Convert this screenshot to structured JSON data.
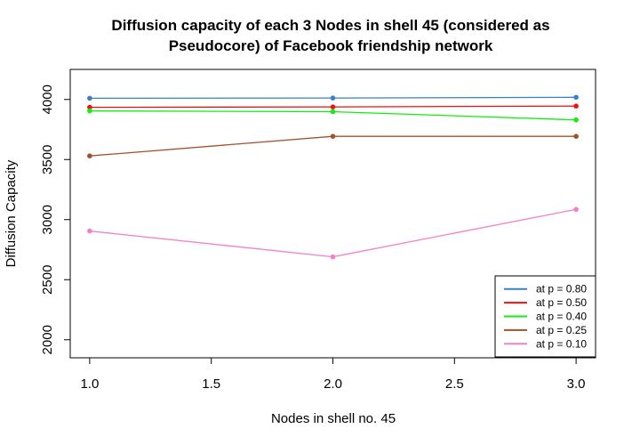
{
  "chart_data": {
    "type": "line",
    "title_lines": [
      "Diffusion capacity of each 3 Nodes in shell 45 (considered as",
      "Pseudocore) of Facebook friendship network"
    ],
    "xlabel": "Nodes in shell no. 45",
    "ylabel": "Diffusion Capacity",
    "x": [
      1,
      2,
      3
    ],
    "xlim": [
      0.92,
      3.08
    ],
    "ylim": [
      1850,
      4250
    ],
    "xticks": [
      {
        "value": 1.0,
        "label": "1.0"
      },
      {
        "value": 1.5,
        "label": "1.5"
      },
      {
        "value": 2.0,
        "label": "2.0"
      },
      {
        "value": 2.5,
        "label": "2.5"
      },
      {
        "value": 3.0,
        "label": "3.0"
      }
    ],
    "yticks": [
      {
        "value": 2000,
        "label": "2000"
      },
      {
        "value": 2500,
        "label": "2500"
      },
      {
        "value": 3000,
        "label": "3000"
      },
      {
        "value": 3500,
        "label": "3500"
      },
      {
        "value": 4000,
        "label": "4000"
      }
    ],
    "grid": false,
    "legend_position": "bottom-right",
    "series": [
      {
        "name": "at p = 0.80",
        "color": "#3a80c6",
        "values": [
          4010,
          4012,
          4018
        ]
      },
      {
        "name": "at p = 0.50",
        "color": "#ee1111",
        "values": [
          3935,
          3938,
          3945
        ]
      },
      {
        "name": "at p = 0.40",
        "color": "#11ee11",
        "values": [
          3905,
          3898,
          3830
        ]
      },
      {
        "name": "at p = 0.25",
        "color": "#a0522d",
        "values": [
          3530,
          3693,
          3693
        ]
      },
      {
        "name": "at p = 0.10",
        "color": "#f080c8",
        "values": [
          2905,
          2690,
          3085
        ]
      }
    ]
  }
}
